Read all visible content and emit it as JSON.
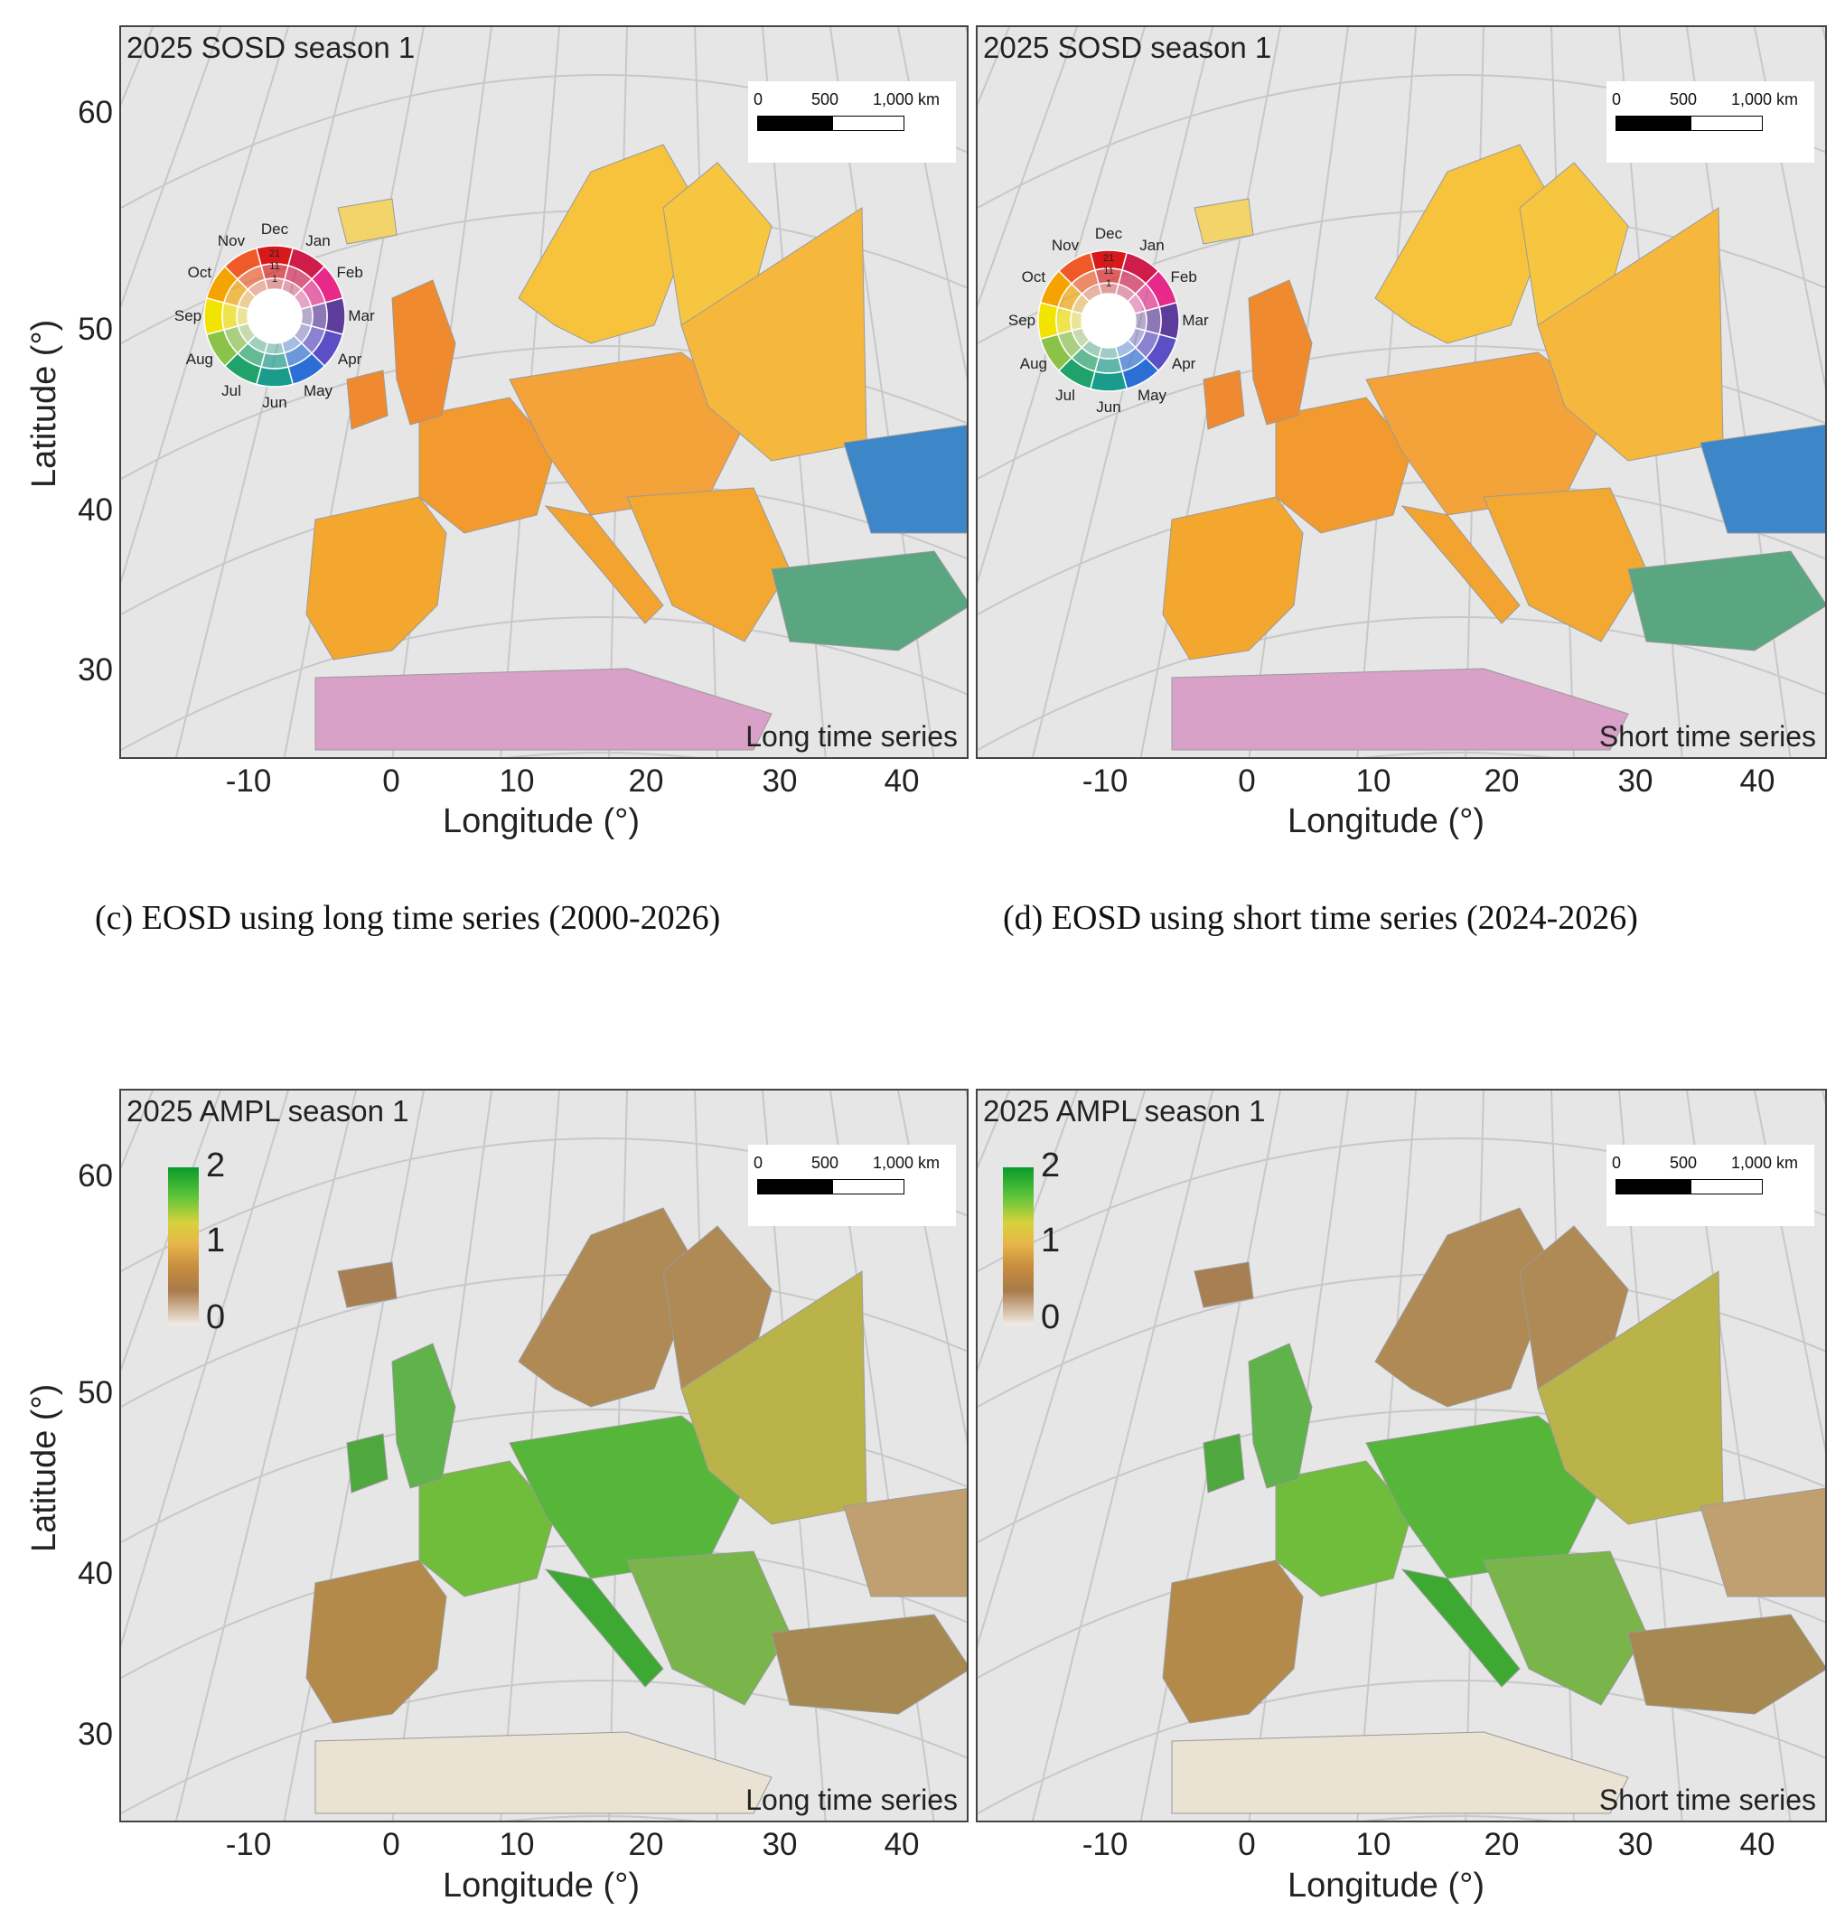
{
  "panels": [
    {
      "id": "sosd-long",
      "title": "2025 SOSD season 1",
      "tag": "Long time series",
      "type": "sosd"
    },
    {
      "id": "sosd-short",
      "title": "2025 SOSD season 1",
      "tag": "Short time series",
      "type": "sosd"
    },
    {
      "id": "ampl-long",
      "title": "2025 AMPL season 1",
      "tag": "Long time series",
      "type": "ampl"
    },
    {
      "id": "ampl-short",
      "title": "2025 AMPL season 1",
      "tag": "Short time series",
      "type": "ampl"
    }
  ],
  "scalebar": {
    "labels": [
      "0",
      "500",
      "1,000 km"
    ]
  },
  "axes": {
    "xlabel": "Longitude (°)",
    "ylabel": "Latitude (°)",
    "xticks": [
      "-10",
      "0",
      "10",
      "20",
      "30",
      "40"
    ],
    "yticks": [
      "60",
      "50",
      "40",
      "30"
    ]
  },
  "captions": {
    "c": "(c) EOSD using long time series (2000-2026)",
    "d": "(d) EOSD using short time series (2024-2026)"
  },
  "season_wheel": {
    "months": [
      "Dec",
      "Jan",
      "Feb",
      "Mar",
      "Apr",
      "May",
      "Jun",
      "Jul",
      "Aug",
      "Sep",
      "Oct",
      "Nov"
    ],
    "rings": [
      "21",
      "11",
      "1"
    ],
    "colors": [
      "#d7191c",
      "#d01c4b",
      "#e7298a",
      "#5e3c99",
      "#5a4fc4",
      "#2b6fd6",
      "#1a9c8c",
      "#1fa36a",
      "#8bc34a",
      "#f2e300",
      "#f4a300",
      "#ef5a28"
    ]
  },
  "ampl_colorbar": {
    "ticks": [
      "2",
      "1",
      "0"
    ],
    "colors": [
      "#0a9a2a",
      "#d6d23c",
      "#c98e3e",
      "#f3eee6"
    ]
  }
}
